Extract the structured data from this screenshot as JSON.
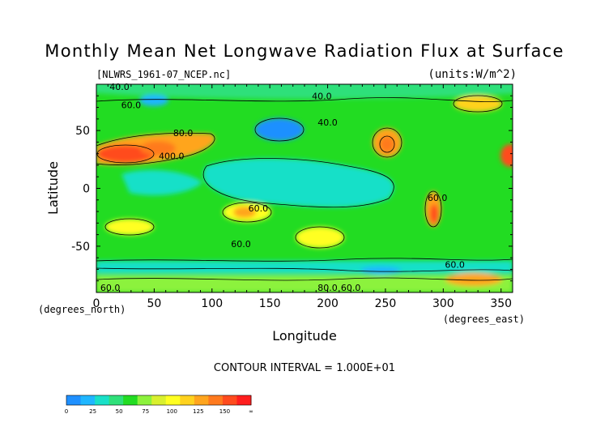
{
  "chart_data": {
    "type": "heatmap",
    "title": "Monthly Mean Net Longwave Radiation Flux at Surface",
    "file_label": "[NLWRS_1961-07_NCEP.nc]",
    "units_label": "(units:W/m^2)",
    "xlabel": "Longitude",
    "ylabel": "Latitude",
    "x_unit_label": "(degrees_east)",
    "y_unit_label": "(degrees_north)",
    "xlim": [
      0,
      360
    ],
    "ylim": [
      -90,
      90
    ],
    "x_ticks": [
      0,
      50,
      100,
      150,
      200,
      250,
      300,
      350
    ],
    "y_ticks": [
      50,
      0,
      -50
    ],
    "contour_interval_text": "CONTOUR INTERVAL = 1.000E+01",
    "contour_labels": [
      {
        "text": "40.0",
        "lon": 20,
        "lat": 88
      },
      {
        "text": "60.0",
        "lon": 30,
        "lat": 72
      },
      {
        "text": "40.0",
        "lon": 195,
        "lat": 80
      },
      {
        "text": "40.0",
        "lon": 200,
        "lat": 57
      },
      {
        "text": "80.0",
        "lon": 75,
        "lat": 48
      },
      {
        "text": "400.0",
        "lon": 65,
        "lat": 28
      },
      {
        "text": "60.0",
        "lon": 140,
        "lat": -17
      },
      {
        "text": "60.0",
        "lon": 295,
        "lat": -8
      },
      {
        "text": "60.0",
        "lon": 125,
        "lat": -48
      },
      {
        "text": "60.0",
        "lon": 310,
        "lat": -66
      },
      {
        "text": "60.0",
        "lon": 12,
        "lat": -88
      },
      {
        "text": "80.0",
        "lon": 200,
        "lat": -90
      },
      {
        "text": "60.0",
        "lon": 220,
        "lat": -89
      }
    ],
    "colorbar": {
      "tick_labels": [
        "0",
        "25",
        "50",
        "75",
        "100",
        "125",
        "150",
        "∞"
      ],
      "colors": [
        "#1f90ff",
        "#1fb6ff",
        "#19e0c8",
        "#2fe07a",
        "#22dc22",
        "#8cf23c",
        "#d9f02e",
        "#ffff22",
        "#ffd21e",
        "#ffa51e",
        "#ff7a1e",
        "#ff4b1e",
        "#ff1e1e"
      ]
    },
    "regions": [
      {
        "name": "background",
        "value": 55,
        "color": "#22dc22"
      },
      {
        "name": "arctic-ocean",
        "value": 45,
        "color": "#2fe07a"
      },
      {
        "name": "tropical-pacific",
        "value": 45,
        "color": "#19e0c8"
      },
      {
        "name": "north-africa-asia-hot",
        "value": 135,
        "color": "#ff7a1e"
      },
      {
        "name": "northwest-america-hot",
        "value": 120,
        "color": "#ffa51e"
      },
      {
        "name": "north-pacific-low",
        "value": 25,
        "color": "#1f90ff"
      },
      {
        "name": "australia-dry",
        "value": 110,
        "color": "#ffd21e"
      },
      {
        "name": "southern-africa-dry",
        "value": 95,
        "color": "#ffff22"
      },
      {
        "name": "andes-dry",
        "value": 140,
        "color": "#ff4b1e"
      },
      {
        "name": "antarctica",
        "value": 70,
        "color": "#8cf23c"
      }
    ]
  }
}
